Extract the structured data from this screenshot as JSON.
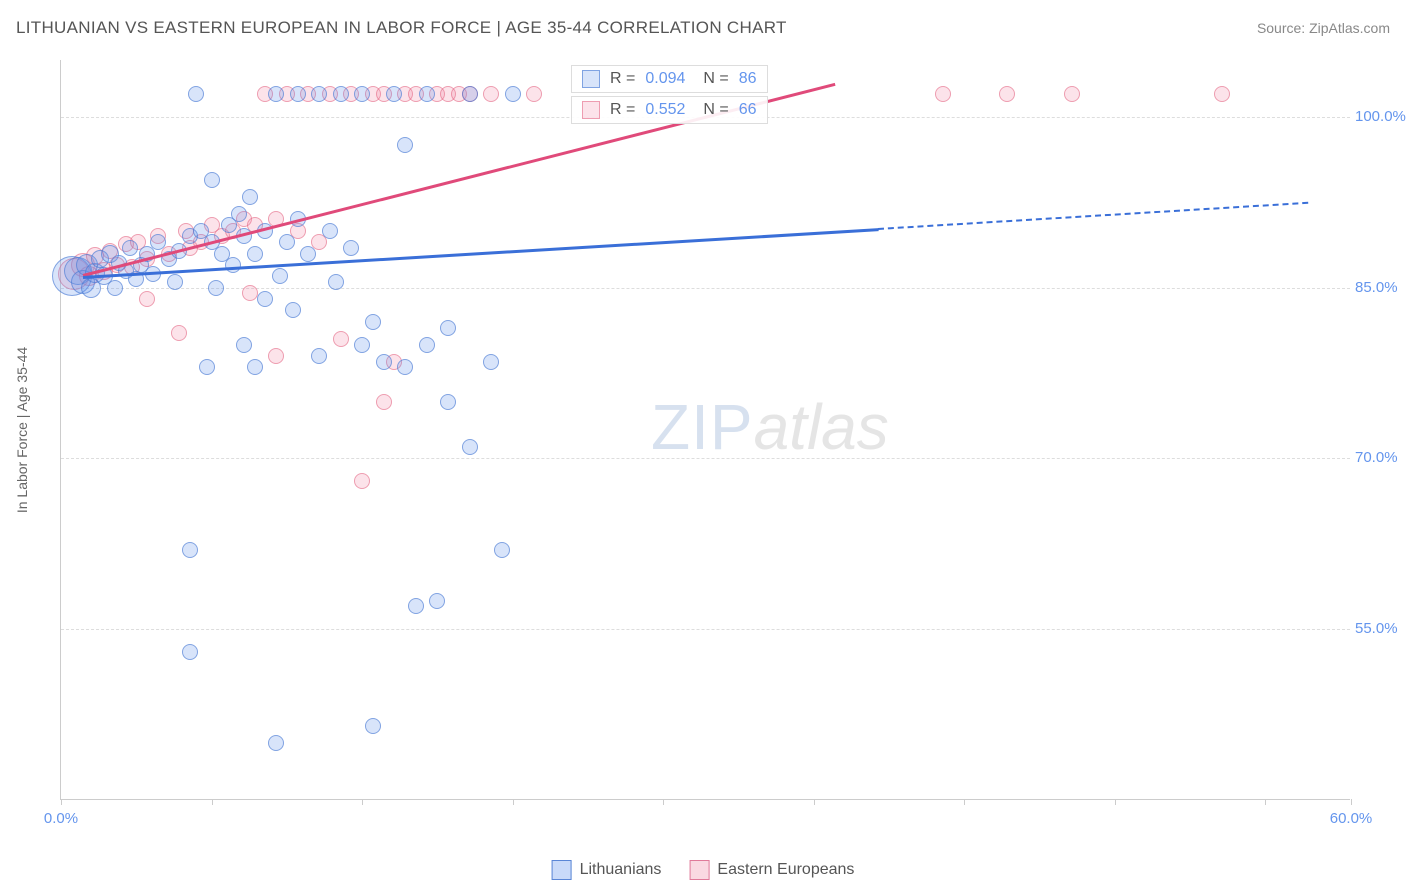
{
  "title": "LITHUANIAN VS EASTERN EUROPEAN IN LABOR FORCE | AGE 35-44 CORRELATION CHART",
  "source": "Source: ZipAtlas.com",
  "y_axis_label": "In Labor Force | Age 35-44",
  "watermark": {
    "zip": "ZIP",
    "atlas": "atlas"
  },
  "chart": {
    "type": "scatter",
    "xlim": [
      0,
      60
    ],
    "ylim": [
      40,
      105
    ],
    "x_ticks": [
      0,
      7,
      14,
      21,
      28,
      35,
      42,
      49,
      56,
      60
    ],
    "x_tick_labels": {
      "0": "0.0%",
      "60": "60.0%"
    },
    "y_ticks": [
      55,
      70,
      85,
      100
    ],
    "y_tick_labels": {
      "55": "55.0%",
      "70": "70.0%",
      "85": "85.0%",
      "100": "100.0%"
    },
    "grid_color": "#dddddd",
    "background_color": "#ffffff",
    "axis_color": "#cccccc",
    "tick_label_color": "#6495ed",
    "tick_label_fontsize": 15
  },
  "series": {
    "blue": {
      "label": "Lithuanians",
      "fill": "rgba(100,149,237,0.25)",
      "stroke": "rgba(70,120,210,0.6)",
      "trend_color": "#3a6fd8",
      "R": "0.094",
      "N": "86",
      "trend": {
        "x1": 1,
        "y1": 86,
        "x2": 38,
        "y2": 90.2,
        "x2_dash": 58,
        "y2_dash": 92.5
      },
      "points": [
        {
          "x": 0.5,
          "y": 86,
          "r": 20
        },
        {
          "x": 0.8,
          "y": 86.5,
          "r": 14
        },
        {
          "x": 1.0,
          "y": 85.5,
          "r": 12
        },
        {
          "x": 1.2,
          "y": 87,
          "r": 11
        },
        {
          "x": 1.4,
          "y": 85,
          "r": 10
        },
        {
          "x": 1.6,
          "y": 86.3,
          "r": 10
        },
        {
          "x": 1.8,
          "y": 87.5,
          "r": 9
        },
        {
          "x": 2.0,
          "y": 86,
          "r": 9
        },
        {
          "x": 2.3,
          "y": 88,
          "r": 9
        },
        {
          "x": 2.5,
          "y": 85,
          "r": 8
        },
        {
          "x": 2.7,
          "y": 87.2,
          "r": 8
        },
        {
          "x": 3.0,
          "y": 86.5,
          "r": 8
        },
        {
          "x": 3.2,
          "y": 88.5,
          "r": 8
        },
        {
          "x": 3.5,
          "y": 85.8,
          "r": 8
        },
        {
          "x": 3.7,
          "y": 87,
          "r": 8
        },
        {
          "x": 4.0,
          "y": 88,
          "r": 8
        },
        {
          "x": 4.3,
          "y": 86.2,
          "r": 8
        },
        {
          "x": 4.5,
          "y": 89,
          "r": 8
        },
        {
          "x": 5.0,
          "y": 87.5,
          "r": 8
        },
        {
          "x": 5.3,
          "y": 85.5,
          "r": 8
        },
        {
          "x": 5.5,
          "y": 88.2,
          "r": 8
        },
        {
          "x": 6.0,
          "y": 62,
          "r": 8
        },
        {
          "x": 6.0,
          "y": 89.5,
          "r": 8
        },
        {
          "x": 6.0,
          "y": 53,
          "r": 8
        },
        {
          "x": 6.3,
          "y": 102,
          "r": 8
        },
        {
          "x": 6.5,
          "y": 90,
          "r": 8
        },
        {
          "x": 6.8,
          "y": 78,
          "r": 8
        },
        {
          "x": 7.0,
          "y": 89,
          "r": 8
        },
        {
          "x": 7.0,
          "y": 94.5,
          "r": 8
        },
        {
          "x": 7.2,
          "y": 85,
          "r": 8
        },
        {
          "x": 7.5,
          "y": 88,
          "r": 8
        },
        {
          "x": 7.8,
          "y": 90.5,
          "r": 8
        },
        {
          "x": 8.0,
          "y": 87,
          "r": 8
        },
        {
          "x": 8.3,
          "y": 91.5,
          "r": 8
        },
        {
          "x": 8.5,
          "y": 80,
          "r": 8
        },
        {
          "x": 8.5,
          "y": 89.5,
          "r": 8
        },
        {
          "x": 8.8,
          "y": 93,
          "r": 8
        },
        {
          "x": 9.0,
          "y": 88,
          "r": 8
        },
        {
          "x": 9.0,
          "y": 78,
          "r": 8
        },
        {
          "x": 9.5,
          "y": 84,
          "r": 8
        },
        {
          "x": 9.5,
          "y": 90,
          "r": 8
        },
        {
          "x": 10.0,
          "y": 102,
          "r": 8
        },
        {
          "x": 10.0,
          "y": 45,
          "r": 8
        },
        {
          "x": 10.2,
          "y": 86,
          "r": 8
        },
        {
          "x": 10.5,
          "y": 89,
          "r": 8
        },
        {
          "x": 10.8,
          "y": 83,
          "r": 8
        },
        {
          "x": 11.0,
          "y": 102,
          "r": 8
        },
        {
          "x": 11.0,
          "y": 91,
          "r": 8
        },
        {
          "x": 11.5,
          "y": 88,
          "r": 8
        },
        {
          "x": 12.0,
          "y": 102,
          "r": 8
        },
        {
          "x": 12.0,
          "y": 79,
          "r": 8
        },
        {
          "x": 12.5,
          "y": 90,
          "r": 8
        },
        {
          "x": 12.8,
          "y": 85.5,
          "r": 8
        },
        {
          "x": 13.0,
          "y": 102,
          "r": 8
        },
        {
          "x": 13.5,
          "y": 88.5,
          "r": 8
        },
        {
          "x": 14.0,
          "y": 102,
          "r": 8
        },
        {
          "x": 14.0,
          "y": 80,
          "r": 8
        },
        {
          "x": 14.5,
          "y": 46.5,
          "r": 8
        },
        {
          "x": 14.5,
          "y": 82,
          "r": 8
        },
        {
          "x": 15.0,
          "y": 78.5,
          "r": 8
        },
        {
          "x": 15.5,
          "y": 102,
          "r": 8
        },
        {
          "x": 16.0,
          "y": 97.5,
          "r": 8
        },
        {
          "x": 16.0,
          "y": 78,
          "r": 8
        },
        {
          "x": 16.5,
          "y": 57,
          "r": 8
        },
        {
          "x": 17.0,
          "y": 102,
          "r": 8
        },
        {
          "x": 17.0,
          "y": 80,
          "r": 8
        },
        {
          "x": 17.5,
          "y": 57.5,
          "r": 8
        },
        {
          "x": 18.0,
          "y": 81.5,
          "r": 8
        },
        {
          "x": 18.0,
          "y": 75,
          "r": 8
        },
        {
          "x": 19.0,
          "y": 102,
          "r": 8
        },
        {
          "x": 19.0,
          "y": 71,
          "r": 8
        },
        {
          "x": 20.0,
          "y": 78.5,
          "r": 8
        },
        {
          "x": 20.5,
          "y": 62,
          "r": 8
        },
        {
          "x": 21.0,
          "y": 102,
          "r": 8
        }
      ]
    },
    "pink": {
      "label": "Eastern Europeans",
      "fill": "rgba(240,128,160,0.22)",
      "stroke": "rgba(225,100,130,0.55)",
      "trend_color": "#e04a7a",
      "R": "0.552",
      "N": "66",
      "trend": {
        "x1": 1,
        "y1": 86.2,
        "x2": 36,
        "y2": 103
      },
      "points": [
        {
          "x": 0.6,
          "y": 86.2,
          "r": 16
        },
        {
          "x": 1.0,
          "y": 87,
          "r": 12
        },
        {
          "x": 1.3,
          "y": 86,
          "r": 10
        },
        {
          "x": 1.6,
          "y": 87.8,
          "r": 9
        },
        {
          "x": 2.0,
          "y": 86.5,
          "r": 9
        },
        {
          "x": 2.3,
          "y": 88.2,
          "r": 8
        },
        {
          "x": 2.6,
          "y": 87,
          "r": 8
        },
        {
          "x": 3.0,
          "y": 88.8,
          "r": 8
        },
        {
          "x": 3.3,
          "y": 86.8,
          "r": 8
        },
        {
          "x": 3.6,
          "y": 89,
          "r": 8
        },
        {
          "x": 4.0,
          "y": 87.5,
          "r": 8
        },
        {
          "x": 4.0,
          "y": 84,
          "r": 8
        },
        {
          "x": 4.5,
          "y": 89.5,
          "r": 8
        },
        {
          "x": 5.0,
          "y": 88,
          "r": 8
        },
        {
          "x": 5.5,
          "y": 81,
          "r": 8
        },
        {
          "x": 5.8,
          "y": 90,
          "r": 8
        },
        {
          "x": 6.0,
          "y": 88.5,
          "r": 8
        },
        {
          "x": 6.5,
          "y": 89,
          "r": 8
        },
        {
          "x": 7.0,
          "y": 90.5,
          "r": 8
        },
        {
          "x": 7.5,
          "y": 89.5,
          "r": 8
        },
        {
          "x": 8.0,
          "y": 90,
          "r": 8
        },
        {
          "x": 8.5,
          "y": 91,
          "r": 8
        },
        {
          "x": 8.8,
          "y": 84.5,
          "r": 8
        },
        {
          "x": 9.0,
          "y": 90.5,
          "r": 8
        },
        {
          "x": 9.5,
          "y": 102,
          "r": 8
        },
        {
          "x": 10.0,
          "y": 91,
          "r": 8
        },
        {
          "x": 10.0,
          "y": 79,
          "r": 8
        },
        {
          "x": 10.5,
          "y": 102,
          "r": 8
        },
        {
          "x": 11.0,
          "y": 90,
          "r": 8
        },
        {
          "x": 11.5,
          "y": 102,
          "r": 8
        },
        {
          "x": 12.0,
          "y": 89,
          "r": 8
        },
        {
          "x": 12.5,
          "y": 102,
          "r": 8
        },
        {
          "x": 13.0,
          "y": 80.5,
          "r": 8
        },
        {
          "x": 13.5,
          "y": 102,
          "r": 8
        },
        {
          "x": 14.0,
          "y": 68,
          "r": 8
        },
        {
          "x": 14.5,
          "y": 102,
          "r": 8
        },
        {
          "x": 15.0,
          "y": 102,
          "r": 8
        },
        {
          "x": 15.0,
          "y": 75,
          "r": 8
        },
        {
          "x": 15.5,
          "y": 78.5,
          "r": 8
        },
        {
          "x": 16.0,
          "y": 102,
          "r": 8
        },
        {
          "x": 16.5,
          "y": 102,
          "r": 8
        },
        {
          "x": 17.5,
          "y": 102,
          "r": 8
        },
        {
          "x": 18.0,
          "y": 102,
          "r": 8
        },
        {
          "x": 18.5,
          "y": 102,
          "r": 8
        },
        {
          "x": 19.0,
          "y": 102,
          "r": 8
        },
        {
          "x": 20.0,
          "y": 102,
          "r": 8
        },
        {
          "x": 22.0,
          "y": 102,
          "r": 8
        },
        {
          "x": 41.0,
          "y": 102,
          "r": 8
        },
        {
          "x": 44.0,
          "y": 102,
          "r": 8
        },
        {
          "x": 47.0,
          "y": 102,
          "r": 8
        },
        {
          "x": 54.0,
          "y": 102,
          "r": 8
        }
      ]
    }
  },
  "stat_boxes": {
    "r_label": "R =",
    "n_label": "N ="
  },
  "legend": {
    "blue": "Lithuanians",
    "pink": "Eastern Europeans"
  }
}
